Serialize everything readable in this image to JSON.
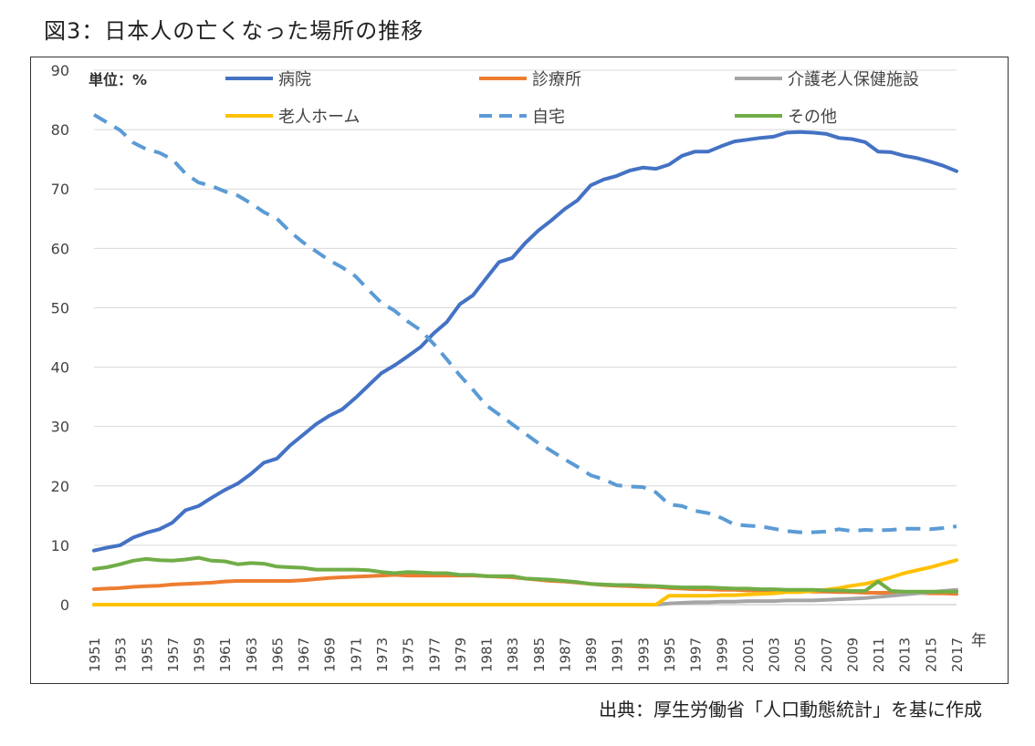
{
  "title": "図3：日本人の亡くなった場所の推移",
  "source": "出典：厚生労働省「人口動態統計」を基に作成",
  "chart_data": {
    "type": "line",
    "unit_label": "単位：%",
    "xlabel": "年",
    "ylim": [
      0,
      90
    ],
    "yticks": [
      0,
      10,
      20,
      30,
      40,
      50,
      60,
      70,
      80,
      90
    ],
    "x_start": 1951,
    "x_end": 2017,
    "xticks": [
      1951,
      1953,
      1955,
      1957,
      1959,
      1961,
      1963,
      1965,
      1967,
      1969,
      1971,
      1973,
      1975,
      1977,
      1979,
      1981,
      1983,
      1985,
      1987,
      1989,
      1991,
      1993,
      1995,
      1997,
      1999,
      2001,
      2003,
      2005,
      2007,
      2009,
      2011,
      2013,
      2015,
      2017
    ],
    "grid": true,
    "legend_position": "top",
    "series": [
      {
        "name": "病院",
        "color": "#4472C4",
        "dash": false,
        "values": [
          9.1,
          9.6,
          10.0,
          11.3,
          12.1,
          12.7,
          13.8,
          15.9,
          16.6,
          18.0,
          19.3,
          20.4,
          22.0,
          23.9,
          24.6,
          26.8,
          28.6,
          30.4,
          31.8,
          32.9,
          34.8,
          36.9,
          39.0,
          40.3,
          41.8,
          43.4,
          45.7,
          47.6,
          50.6,
          52.1,
          54.9,
          57.7,
          58.4,
          60.9,
          63.0,
          64.7,
          66.6,
          68.1,
          70.6,
          71.6,
          72.2,
          73.1,
          73.6,
          73.4,
          74.1,
          75.6,
          76.3,
          76.3,
          77.2,
          78.0,
          78.3,
          78.6,
          78.8,
          79.5,
          79.6,
          79.5,
          79.3,
          78.6,
          78.4,
          77.9,
          76.3,
          76.2,
          75.6,
          75.2,
          74.6,
          73.9,
          73.0
        ]
      },
      {
        "name": "診療所",
        "color": "#ED7D31",
        "dash": false,
        "values": [
          2.6,
          2.7,
          2.8,
          3.0,
          3.1,
          3.2,
          3.4,
          3.5,
          3.6,
          3.7,
          3.9,
          4.0,
          4.0,
          4.0,
          4.0,
          4.0,
          4.1,
          4.3,
          4.5,
          4.6,
          4.7,
          4.8,
          4.9,
          5.0,
          4.9,
          4.9,
          4.9,
          4.9,
          4.9,
          4.9,
          4.8,
          4.7,
          4.6,
          4.4,
          4.2,
          4.0,
          3.9,
          3.7,
          3.5,
          3.3,
          3.2,
          3.1,
          3.0,
          3.0,
          2.8,
          2.7,
          2.6,
          2.6,
          2.5,
          2.5,
          2.4,
          2.4,
          2.4,
          2.3,
          2.3,
          2.2,
          2.2,
          2.1,
          2.1,
          2.0,
          2.0,
          2.0,
          2.0,
          2.0,
          1.9,
          1.9,
          1.8
        ]
      },
      {
        "name": "介護老人保健施設",
        "color": "#A5A5A5",
        "dash": false,
        "values": [
          0,
          0,
          0,
          0,
          0,
          0,
          0,
          0,
          0,
          0,
          0,
          0,
          0,
          0,
          0,
          0,
          0,
          0,
          0,
          0,
          0,
          0,
          0,
          0,
          0,
          0,
          0,
          0,
          0,
          0,
          0,
          0,
          0,
          0,
          0,
          0,
          0,
          0,
          0,
          0,
          0,
          0,
          0,
          0,
          0.2,
          0.3,
          0.4,
          0.4,
          0.5,
          0.5,
          0.6,
          0.6,
          0.6,
          0.7,
          0.7,
          0.7,
          0.8,
          0.9,
          1.0,
          1.1,
          1.3,
          1.5,
          1.7,
          1.9,
          2.1,
          2.3,
          2.5
        ]
      },
      {
        "name": "老人ホーム",
        "color": "#FFC000",
        "dash": false,
        "values": [
          0,
          0,
          0,
          0,
          0,
          0,
          0,
          0,
          0,
          0,
          0,
          0,
          0,
          0,
          0,
          0,
          0,
          0,
          0,
          0,
          0,
          0,
          0,
          0,
          0,
          0,
          0,
          0,
          0,
          0,
          0,
          0,
          0,
          0,
          0,
          0,
          0,
          0,
          0,
          0,
          0,
          0,
          0,
          0,
          1.5,
          1.5,
          1.5,
          1.5,
          1.6,
          1.6,
          1.7,
          1.8,
          1.9,
          2.1,
          2.1,
          2.3,
          2.5,
          2.8,
          3.2,
          3.5,
          4.0,
          4.6,
          5.3,
          5.8,
          6.3,
          6.9,
          7.5
        ]
      },
      {
        "name": "自宅",
        "color": "#5B9BD5",
        "dash": true,
        "values": [
          82.5,
          81.2,
          79.9,
          77.8,
          76.7,
          76.1,
          75.0,
          72.6,
          71.1,
          70.5,
          69.6,
          68.9,
          67.6,
          66.1,
          65.0,
          62.8,
          61.0,
          59.5,
          58.0,
          56.8,
          55.3,
          53.0,
          50.8,
          49.5,
          47.7,
          46.2,
          43.9,
          41.3,
          38.6,
          36.2,
          33.6,
          32.0,
          30.4,
          28.8,
          27.2,
          25.9,
          24.5,
          23.2,
          21.8,
          21.1,
          20.1,
          19.9,
          19.8,
          18.9,
          16.9,
          16.6,
          15.8,
          15.4,
          14.6,
          13.5,
          13.3,
          13.2,
          12.8,
          12.4,
          12.2,
          12.2,
          12.3,
          12.7,
          12.4,
          12.6,
          12.5,
          12.6,
          12.8,
          12.8,
          12.7,
          12.9,
          13.2
        ]
      },
      {
        "name": "その他",
        "color": "#70AD47",
        "dash": false,
        "values": [
          6.0,
          6.3,
          6.8,
          7.4,
          7.7,
          7.5,
          7.4,
          7.6,
          7.9,
          7.4,
          7.3,
          6.8,
          7.0,
          6.9,
          6.4,
          6.3,
          6.2,
          5.9,
          5.9,
          5.9,
          5.9,
          5.8,
          5.5,
          5.3,
          5.5,
          5.4,
          5.3,
          5.3,
          5.0,
          5.0,
          4.8,
          4.8,
          4.8,
          4.4,
          4.3,
          4.2,
          4.0,
          3.8,
          3.5,
          3.4,
          3.3,
          3.3,
          3.2,
          3.1,
          3.0,
          2.9,
          2.9,
          2.9,
          2.8,
          2.7,
          2.7,
          2.6,
          2.6,
          2.5,
          2.5,
          2.5,
          2.4,
          2.4,
          2.3,
          2.3,
          3.9,
          2.3,
          2.2,
          2.2,
          2.2,
          2.2,
          2.2
        ]
      }
    ]
  }
}
